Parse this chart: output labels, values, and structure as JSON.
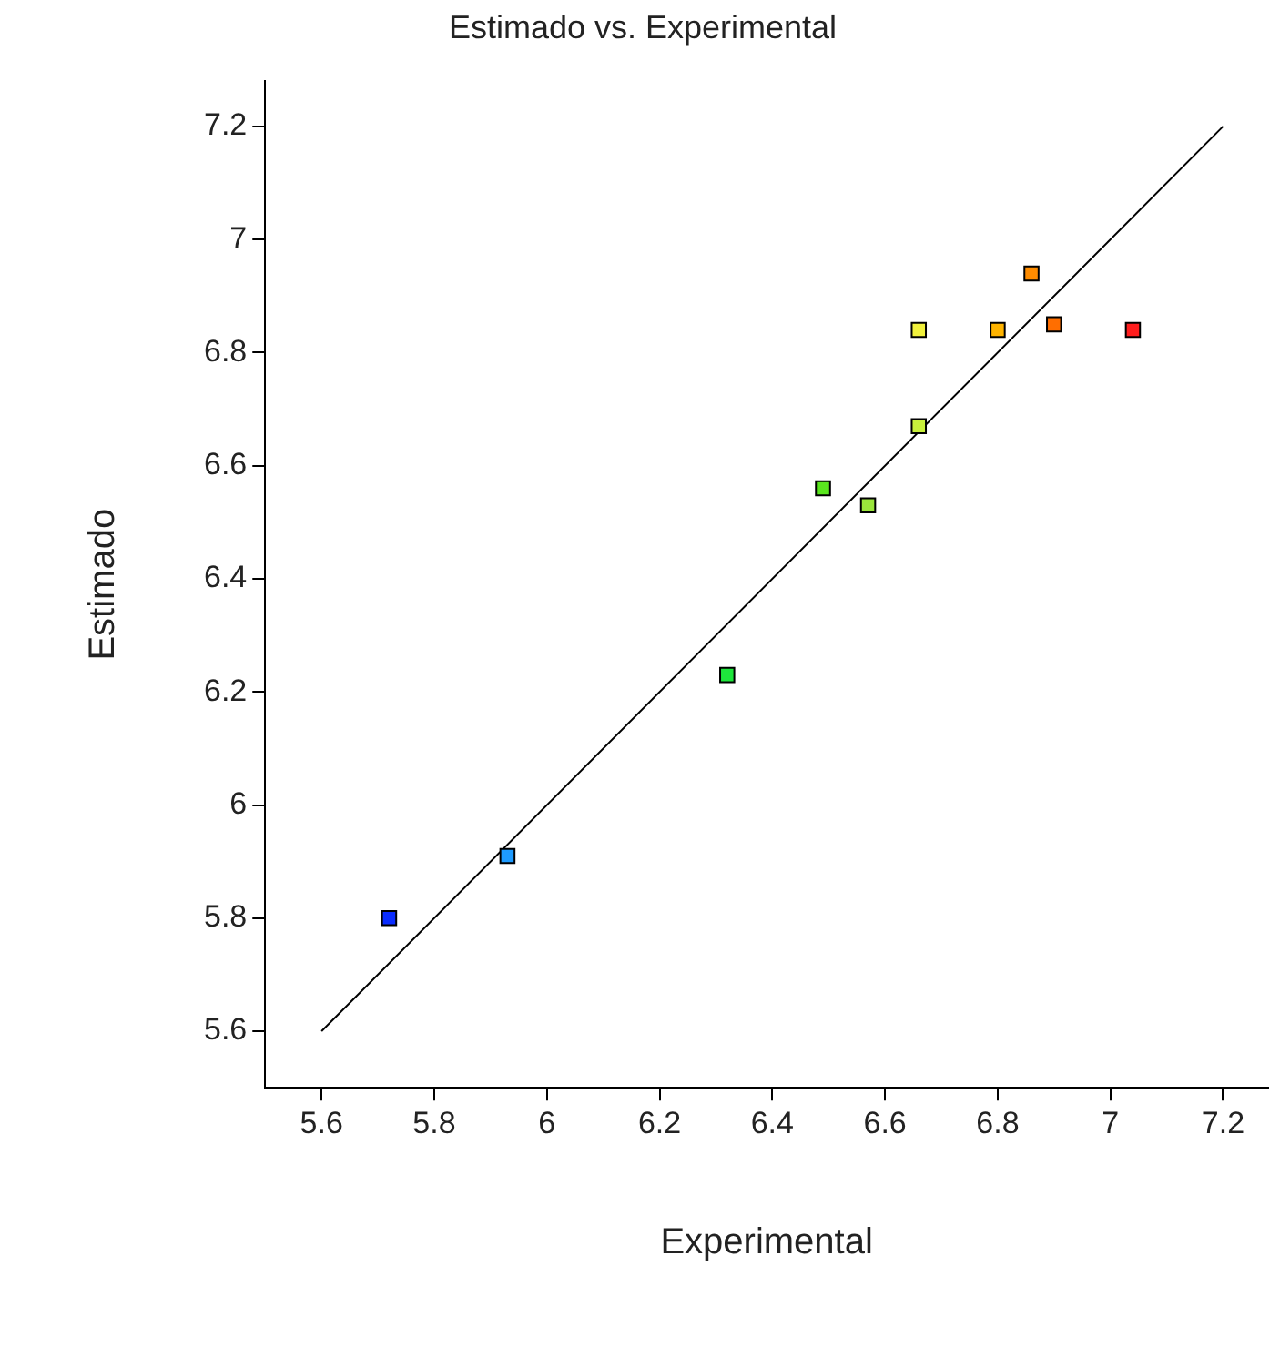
{
  "chart_data": {
    "type": "scatter",
    "title": "Estimado vs. Experimental",
    "xlabel": "Experimental",
    "ylabel": "Estimado",
    "xlim": [
      5.5,
      7.28
    ],
    "ylim": [
      5.5,
      7.28
    ],
    "xticks": [
      5.6,
      5.8,
      {
        "value": 6,
        "label": "6"
      },
      6.2,
      6.4,
      6.6,
      6.8,
      {
        "value": 7,
        "label": "7"
      },
      7.2
    ],
    "yticks": [
      5.6,
      5.8,
      {
        "value": 6,
        "label": "6"
      },
      6.2,
      6.4,
      6.6,
      6.8,
      {
        "value": 7,
        "label": "7"
      },
      7.2
    ],
    "grid": false,
    "legend": false,
    "marker": "square",
    "series": [
      {
        "type": "line",
        "color": "#000000",
        "x": [
          5.6,
          7.2
        ],
        "values": [
          5.6,
          7.2
        ],
        "marker": "none",
        "line_style": "solid"
      },
      {
        "x": [
          5.72,
          5.93,
          6.32,
          6.49,
          6.57,
          6.66,
          6.66,
          6.8,
          6.86,
          6.9,
          7.04
        ],
        "values": [
          5.8,
          5.91,
          6.23,
          6.56,
          6.53,
          6.67,
          6.84,
          6.84,
          6.94,
          6.85,
          6.84
        ],
        "colors": [
          "#0a2cff",
          "#1e9bff",
          "#1ee63c",
          "#5ae61e",
          "#9be63c",
          "#c8f03c",
          "#f0f03c",
          "#ffb400",
          "#ff8c00",
          "#ff6e00",
          "#ff1e1e"
        ]
      }
    ]
  }
}
